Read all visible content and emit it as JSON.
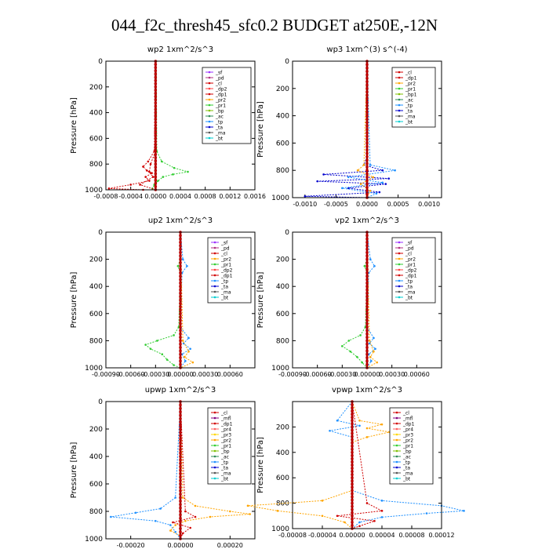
{
  "title": "044_f2c_thresh45_sfc0.2  BUDGET at250E,-12N",
  "colors": {
    "sf": "#9b30ff",
    "pd": "#b03080",
    "cl": "#d00000",
    "dp1": "#d00000",
    "dp2": "#ff4040",
    "pr1": "#32cd32",
    "pr2": "#ffa500",
    "pr3": "#ffd700",
    "pr4": "#ff6060",
    "bp": "#7fbf00",
    "ac": "#2e8b57",
    "tp": "#1e90ff",
    "ta": "#0000cd",
    "ma": "#555555",
    "bt": "#00ced1",
    "mfl": "#800080",
    "bp1": "#7fbf00"
  },
  "chart_data": [
    {
      "type": "line",
      "title": "wp2   1xm^2/s^3",
      "ylabel": "Pressure  [hPa]",
      "xlim": [
        -0.0008,
        0.0016
      ],
      "ylim": [
        1000,
        0
      ],
      "xticks": [
        "-0.0008",
        "-0.0004",
        "0.0000",
        "0.0004",
        "0.0008",
        "0.0012",
        "0.0016"
      ],
      "xtick_values": [
        -0.0008,
        -0.0004,
        0.0,
        0.0004,
        0.0008,
        0.0012,
        0.0016
      ],
      "yticks": [
        "0",
        "200",
        "400",
        "600",
        "800",
        "1000"
      ],
      "legend": [
        "_sf",
        "_pd",
        "_cl",
        "_dp2",
        "_dp1",
        "_pr2",
        "_pr1",
        "_bp",
        "_ac",
        "_tp",
        "_ta",
        "_ma",
        "_bt"
      ],
      "legend_keys": [
        "sf",
        "pd",
        "cl",
        "dp2",
        "dp1",
        "pr2",
        "pr1",
        "bp",
        "ac",
        "tp",
        "ta",
        "ma",
        "bt"
      ],
      "legend_position": "top-right",
      "series": [
        {
          "key": "pr1",
          "y": [
            0,
            700,
            780,
            830,
            860,
            880,
            900,
            930,
            960,
            990,
            1000
          ],
          "x": [
            1e-05,
            2e-05,
            0.0001,
            0.0003,
            0.00052,
            0.00028,
            0.00012,
            4e-05,
            -2e-05,
            -5e-05,
            0.0
          ]
        },
        {
          "key": "cl",
          "y": [
            0,
            700,
            780,
            820,
            850,
            870,
            900,
            930,
            960,
            990,
            1000
          ],
          "x": [
            0.0,
            -2e-05,
            -0.00012,
            -0.0002,
            -0.00014,
            -6e-05,
            -0.00016,
            -0.0001,
            -0.0004,
            -0.00075,
            -0.0002
          ]
        },
        {
          "key": "dp1",
          "y": [
            0,
            700,
            800,
            860,
            900,
            960,
            1000
          ],
          "x": [
            0.0,
            0.0,
            -8e-05,
            -0.0001,
            -4e-05,
            -0.00025,
            0.0
          ]
        },
        {
          "key": "pd",
          "y": [
            0,
            1000
          ],
          "x": [
            0.0,
            0.0
          ]
        }
      ]
    },
    {
      "type": "line",
      "title": "wp3   1xm^(3) s^(-4)",
      "ylabel": "Pressure  [hPa]",
      "xlim": [
        -0.0012,
        0.0012
      ],
      "ylim": [
        1000,
        0
      ],
      "xticks": [
        "-0.0010",
        "-0.0005",
        "0.0000",
        "0.0005",
        "0.0010"
      ],
      "xtick_values": [
        -0.001,
        -0.0005,
        0.0,
        0.0005,
        0.001
      ],
      "yticks": [
        "0",
        "200",
        "400",
        "600",
        "800",
        "1000"
      ],
      "legend": [
        "_cl",
        "_dp1",
        "_pr2",
        "_pr1",
        "_bp1",
        "_ac",
        "_tp",
        "_ta",
        "_ma",
        "_bt"
      ],
      "legend_keys": [
        "cl",
        "dp1",
        "pr2",
        "pr1",
        "bp1",
        "ac",
        "tp",
        "ta",
        "ma",
        "bt"
      ],
      "legend_position": "top-right",
      "series": [
        {
          "key": "ta",
          "y": [
            0,
            700,
            760,
            800,
            830,
            860,
            880,
            900,
            930,
            960,
            990,
            1000
          ],
          "x": [
            0.0,
            0.0,
            -5e-05,
            0.00025,
            -0.0007,
            0.00035,
            -0.0008,
            0.0003,
            -0.0003,
            0.0002,
            -0.001,
            0.0
          ]
        },
        {
          "key": "tp",
          "y": [
            0,
            760,
            800,
            850,
            890,
            930,
            970,
            1000
          ],
          "x": [
            0.0,
            5e-05,
            0.00045,
            -0.0003,
            0.00025,
            -0.0004,
            0.00015,
            0.0
          ]
        },
        {
          "key": "pr2",
          "y": [
            0,
            760,
            800,
            850,
            900,
            950,
            1000
          ],
          "x": [
            0.0,
            -5e-05,
            -0.00015,
            0.0001,
            -0.0001,
            5e-05,
            0.0
          ]
        },
        {
          "key": "cl",
          "y": [
            0,
            1000
          ],
          "x": [
            0.0,
            0.0
          ]
        }
      ]
    },
    {
      "type": "line",
      "title": "up2   1xm^2/s^3",
      "ylabel": "Pressure  [hPa]",
      "xlim": [
        -0.0009,
        0.0009
      ],
      "ylim": [
        1000,
        0
      ],
      "xticks": [
        "-0.00090",
        "-0.00060",
        "-0.00030",
        "0.00000",
        "0.00030",
        "0.00060"
      ],
      "xtick_values": [
        -0.0009,
        -0.0006,
        -0.0003,
        0.0,
        0.0003,
        0.0006
      ],
      "yticks": [
        "0",
        "200",
        "400",
        "600",
        "800",
        "1000"
      ],
      "legend": [
        "_sf",
        "_pd",
        "_cl",
        "_pr2",
        "_pr1",
        "_dp2",
        "_dp1",
        "_tp",
        "_ta",
        "_ma",
        "_bt"
      ],
      "legend_keys": [
        "sf",
        "pd",
        "cl",
        "pr2",
        "pr1",
        "dp2",
        "dp1",
        "tp",
        "ta",
        "ma",
        "bt"
      ],
      "legend_position": "top-right",
      "series": [
        {
          "key": "pr1",
          "y": [
            0,
            200,
            250,
            300,
            700,
            760,
            800,
            830,
            860,
            900,
            940,
            980,
            1000
          ],
          "x": [
            0.0,
            0.0,
            -3e-05,
            0.0,
            -2e-05,
            -8e-05,
            -0.00028,
            -0.00042,
            -0.00036,
            -0.00022,
            -0.00016,
            -8e-05,
            0.0
          ]
        },
        {
          "key": "tp",
          "y": [
            0,
            200,
            250,
            300,
            700,
            780,
            820,
            860,
            900,
            950,
            1000
          ],
          "x": [
            0.0,
            3e-05,
            8e-05,
            2e-05,
            0.0,
            0.0001,
            4e-05,
            0.00012,
            2e-05,
            6e-05,
            0.0
          ]
        },
        {
          "key": "pr2",
          "y": [
            0,
            800,
            880,
            920,
            960,
            1000
          ],
          "x": [
            0.0,
            3e-05,
            0.0001,
            5e-05,
            0.00015,
            0.0
          ]
        },
        {
          "key": "cl",
          "y": [
            0,
            1000
          ],
          "x": [
            0.0,
            0.0
          ]
        }
      ]
    },
    {
      "type": "line",
      "title": "vp2   1xm^2/s^3",
      "ylabel": "Pressure  [hPa]",
      "xlim": [
        -0.0009,
        0.0009
      ],
      "ylim": [
        1000,
        0
      ],
      "xticks": [
        "-0.00090",
        "-0.00060",
        "-0.00030",
        "0.00000",
        "0.00030",
        "0.00060"
      ],
      "xtick_values": [
        -0.0009,
        -0.0006,
        -0.0003,
        0.0,
        0.0003,
        0.0006
      ],
      "yticks": [
        "0",
        "200",
        "400",
        "600",
        "800",
        "1000"
      ],
      "legend": [
        "_sf",
        "_pd",
        "_cl",
        "_pr2",
        "_pr1",
        "_dp2",
        "_dp1",
        "_tp",
        "_ta",
        "_ma",
        "_bt"
      ],
      "legend_keys": [
        "sf",
        "pd",
        "cl",
        "pr2",
        "pr1",
        "dp2",
        "dp1",
        "tp",
        "ta",
        "ma",
        "bt"
      ],
      "legend_position": "top-right",
      "series": [
        {
          "key": "pr1",
          "y": [
            0,
            200,
            250,
            300,
            700,
            760,
            800,
            840,
            880,
            920,
            960,
            1000
          ],
          "x": [
            0.0,
            0.0,
            -3e-05,
            0.0,
            -2e-05,
            -8e-05,
            -0.00022,
            -0.0003,
            -0.0002,
            -0.00012,
            -6e-05,
            0.0
          ]
        },
        {
          "key": "tp",
          "y": [
            0,
            200,
            250,
            300,
            700,
            780,
            820,
            860,
            900,
            950,
            1000
          ],
          "x": [
            0.0,
            4e-05,
            9e-05,
            2e-05,
            0.0,
            8e-05,
            3e-05,
            0.0001,
            2e-05,
            5e-05,
            0.0
          ]
        },
        {
          "key": "pr2",
          "y": [
            0,
            800,
            880,
            920,
            960,
            1000
          ],
          "x": [
            0.0,
            3e-05,
            8e-05,
            4e-05,
            0.00012,
            0.0
          ]
        },
        {
          "key": "cl",
          "y": [
            0,
            1000
          ],
          "x": [
            0.0,
            0.0
          ]
        }
      ]
    },
    {
      "type": "line",
      "title": "upwp   1xm^2/s^3",
      "ylabel": "Pressure  [hPa]",
      "xlim": [
        -0.0003,
        0.0003
      ],
      "ylim": [
        1000,
        0
      ],
      "xticks": [
        "-0.00020",
        "0.00000",
        "0.00020"
      ],
      "xtick_values": [
        -0.0002,
        0.0,
        0.0002
      ],
      "yticks": [
        "0",
        "200",
        "400",
        "600",
        "800",
        "1000"
      ],
      "legend": [
        "_cl",
        "_mfl",
        "_dp1",
        "_pr4",
        "_pr3",
        "_pr2",
        "_pr1",
        "_bp",
        "_ac",
        "_tp",
        "_ta",
        "_ma",
        "_bt"
      ],
      "legend_keys": [
        "cl",
        "mfl",
        "dp1",
        "pr4",
        "pr3",
        "pr2",
        "pr1",
        "bp",
        "ac",
        "tp",
        "ta",
        "ma",
        "bt"
      ],
      "legend_position": "top-right",
      "series": [
        {
          "key": "pr2",
          "y": [
            0,
            700,
            760,
            800,
            820,
            840,
            870,
            900,
            940,
            980,
            1000
          ],
          "x": [
            0.0,
            1e-05,
            6e-05,
            0.0002,
            0.00028,
            0.00012,
            2e-05,
            -2e-05,
            -4e-05,
            0.0,
            0.0
          ]
        },
        {
          "key": "tp",
          "y": [
            0,
            700,
            780,
            810,
            840,
            870,
            900,
            950,
            1000
          ],
          "x": [
            0.0,
            -2e-05,
            -8e-05,
            -0.00018,
            -0.00028,
            -0.0001,
            -4e-05,
            -2e-05,
            0.0
          ]
        },
        {
          "key": "cl",
          "y": [
            0,
            800,
            840,
            880,
            920,
            960,
            1000
          ],
          "x": [
            0.0,
            2e-05,
            6e-05,
            -3e-05,
            4e-05,
            1e-05,
            0.0
          ]
        },
        {
          "key": "mfl",
          "y": [
            0,
            1000
          ],
          "x": [
            0.0,
            0.0
          ]
        }
      ]
    },
    {
      "type": "line",
      "title": "vpwp   1xm^2/s^3",
      "ylabel": "Pressure  [hPa]",
      "xlim": [
        -8e-05,
        0.00012
      ],
      "ylim": [
        1000,
        0
      ],
      "xticks": [
        "-0.00008",
        "-0.00004",
        "0.00000",
        "0.00004",
        "0.00008",
        "0.00012"
      ],
      "xtick_values": [
        -8e-05,
        -4e-05,
        0.0,
        4e-05,
        8e-05,
        0.00012
      ],
      "yticks": [
        "200",
        "400",
        "600",
        "800",
        "1000"
      ],
      "legend": [
        "_cl",
        "_mfl",
        "_dp1",
        "_pr4",
        "_pr3",
        "_pr2",
        "_pr1",
        "_bp",
        "_ac",
        "_tp",
        "_ta",
        "_ma",
        "_bt"
      ],
      "legend_keys": [
        "cl",
        "mfl",
        "dp1",
        "pr4",
        "pr3",
        "pr2",
        "pr1",
        "bp",
        "ac",
        "tp",
        "ta",
        "ma",
        "bt"
      ],
      "legend_position": "top-right",
      "series": [
        {
          "key": "pr2",
          "y": [
            0,
            150,
            180,
            210,
            240,
            280,
            320,
            700,
            780,
            820,
            860,
            900,
            950,
            1000
          ],
          "x": [
            0.0,
            1e-05,
            4e-05,
            2e-05,
            5e-05,
            2e-05,
            0.0,
            0.0,
            -4e-05,
            -0.00014,
            -0.0001,
            -4e-05,
            -1e-05,
            0.0
          ]
        },
        {
          "key": "tp",
          "y": [
            0,
            150,
            190,
            230,
            280,
            700,
            780,
            820,
            860,
            880,
            910,
            950,
            1000
          ],
          "x": [
            0.0,
            -2e-05,
            1e-05,
            -3e-05,
            0.0,
            0.0,
            4e-05,
            0.00012,
            0.00015,
            0.0001,
            4e-05,
            1e-05,
            0.0
          ]
        },
        {
          "key": "cl",
          "y": [
            0,
            800,
            860,
            900,
            940,
            980,
            1000
          ],
          "x": [
            0.0,
            2e-05,
            4e-05,
            -2e-05,
            3e-05,
            1e-05,
            0.0
          ]
        },
        {
          "key": "mfl",
          "y": [
            0,
            1000
          ],
          "x": [
            0.0,
            0.0
          ]
        }
      ]
    }
  ]
}
